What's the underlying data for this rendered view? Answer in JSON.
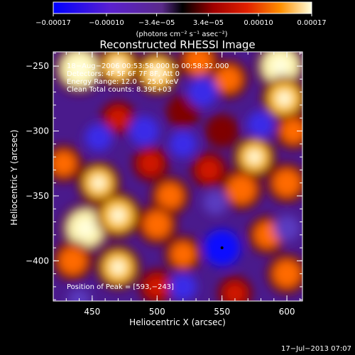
{
  "chart_data": {
    "type": "heatmap",
    "title": "Reconstructed RHESSI Image",
    "xlabel": "Heliocentric X (arcsec)",
    "ylabel": "Heliocentric Y (arcsec)",
    "xlim": [
      420,
      612
    ],
    "ylim": [
      -431,
      -239
    ],
    "xticks": [
      450,
      500,
      550,
      600
    ],
    "yticks": [
      -250,
      -300,
      -350,
      -400
    ],
    "colorbar": {
      "min": -0.00017,
      "max": 0.00017,
      "ticks": [
        -0.00017,
        -0.0001,
        -3.4e-05,
        3.4e-05,
        0.0001,
        0.00017
      ],
      "tick_labels": [
        "−0.00017",
        "−0.00010",
        "−3.4e−05",
        "3.4e−05",
        "0.00010",
        "0.00017"
      ],
      "units": "(photons cm⁻² s⁻¹ asec⁻²)"
    },
    "annotations": [
      "18−Aug−2006 00:53:58.000 to 00:58:32.000",
      "Detectors: 4F 5F 6F 7F 8F, Att 0",
      "Energy Range: 12.0 − 25.0 keV",
      "Clean    Total counts: 8.39E+03",
      "Position of Peak = [593,−243]"
    ],
    "peak": {
      "x": 593,
      "y": -243
    },
    "marker": {
      "x": 550,
      "y": -390
    },
    "sources": [
      {
        "x": 440,
        "y": -252,
        "v": 0.00017
      },
      {
        "x": 470,
        "y": -250,
        "v": 0.00012
      },
      {
        "x": 500,
        "y": -255,
        "v": 0.00013
      },
      {
        "x": 532,
        "y": -246,
        "v": 0.0001
      },
      {
        "x": 555,
        "y": -260,
        "v": 9e-05
      },
      {
        "x": 595,
        "y": -250,
        "v": 0.00017
      },
      {
        "x": 598,
        "y": -275,
        "v": 0.00014
      },
      {
        "x": 605,
        "y": -300,
        "v": 8e-05
      },
      {
        "x": 575,
        "y": -320,
        "v": 0.00012
      },
      {
        "x": 565,
        "y": -345,
        "v": 0.00011
      },
      {
        "x": 600,
        "y": -340,
        "v": 0.0001
      },
      {
        "x": 540,
        "y": -330,
        "v": 7e-05
      },
      {
        "x": 510,
        "y": -350,
        "v": 9e-05
      },
      {
        "x": 495,
        "y": -325,
        "v": 7e-05
      },
      {
        "x": 455,
        "y": -340,
        "v": 0.00012
      },
      {
        "x": 428,
        "y": -325,
        "v": 8e-05
      },
      {
        "x": 445,
        "y": -375,
        "v": 0.00017
      },
      {
        "x": 470,
        "y": -365,
        "v": 0.00014
      },
      {
        "x": 435,
        "y": -400,
        "v": 0.0001
      },
      {
        "x": 470,
        "y": -405,
        "v": 0.00013
      },
      {
        "x": 500,
        "y": -372,
        "v": 0.0001
      },
      {
        "x": 520,
        "y": -395,
        "v": 8e-05
      },
      {
        "x": 585,
        "y": -380,
        "v": 9e-05
      },
      {
        "x": 600,
        "y": -410,
        "v": 0.0001
      },
      {
        "x": 560,
        "y": -425,
        "v": 6e-05
      },
      {
        "x": 500,
        "y": -420,
        "v": 7e-05
      },
      {
        "x": 470,
        "y": -290,
        "v": 6e-05
      },
      {
        "x": 520,
        "y": -285,
        "v": 5e-05
      },
      {
        "x": 550,
        "y": -300,
        "v": 5e-05
      },
      {
        "x": 550,
        "y": -390,
        "v": -0.00017
      },
      {
        "x": 535,
        "y": -270,
        "v": -0.00012
      },
      {
        "x": 490,
        "y": -300,
        "v": -0.00012
      },
      {
        "x": 455,
        "y": -305,
        "v": -0.0001
      },
      {
        "x": 520,
        "y": -310,
        "v": -0.0001
      },
      {
        "x": 580,
        "y": -295,
        "v": -0.0001
      },
      {
        "x": 600,
        "y": -375,
        "v": -9e-05
      },
      {
        "x": 520,
        "y": -420,
        "v": -0.0001
      },
      {
        "x": 440,
        "y": -430,
        "v": -6e-05
      },
      {
        "x": 545,
        "y": -355,
        "v": -8e-05
      }
    ]
  },
  "footer": {
    "timestamp": "17−Jul−2013 07:07"
  }
}
